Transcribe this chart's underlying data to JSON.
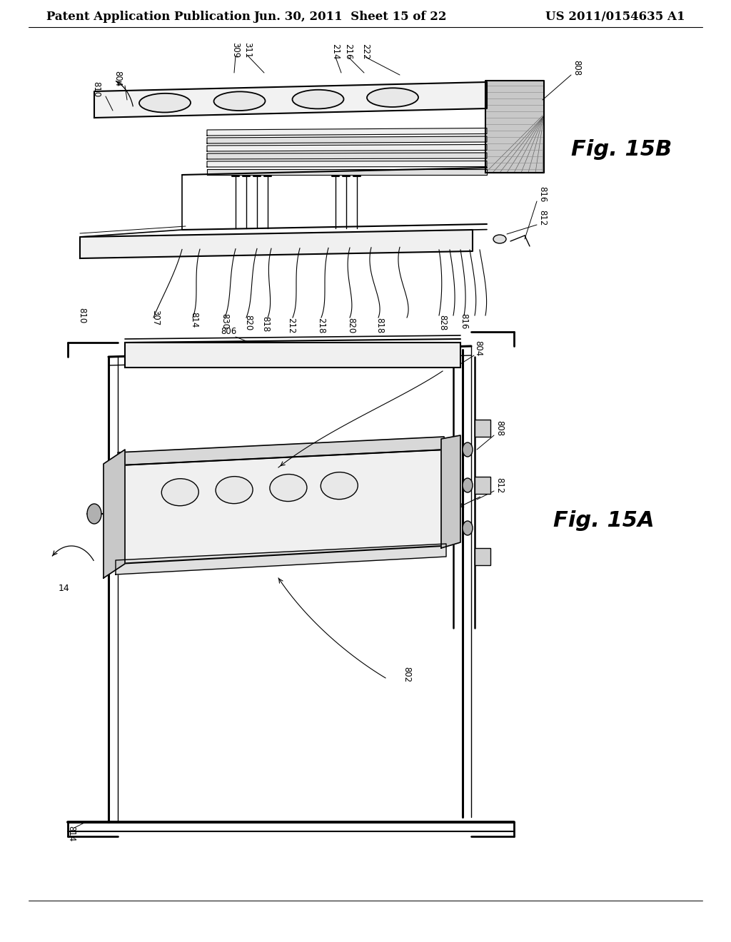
{
  "background_color": "#ffffff",
  "header_left": "Patent Application Publication",
  "header_center": "Jun. 30, 2011  Sheet 15 of 22",
  "header_right": "US 2011/0154635 A1",
  "header_fontsize": 12,
  "fig15b_label": "Fig. 15B",
  "fig15a_label": "Fig. 15A"
}
